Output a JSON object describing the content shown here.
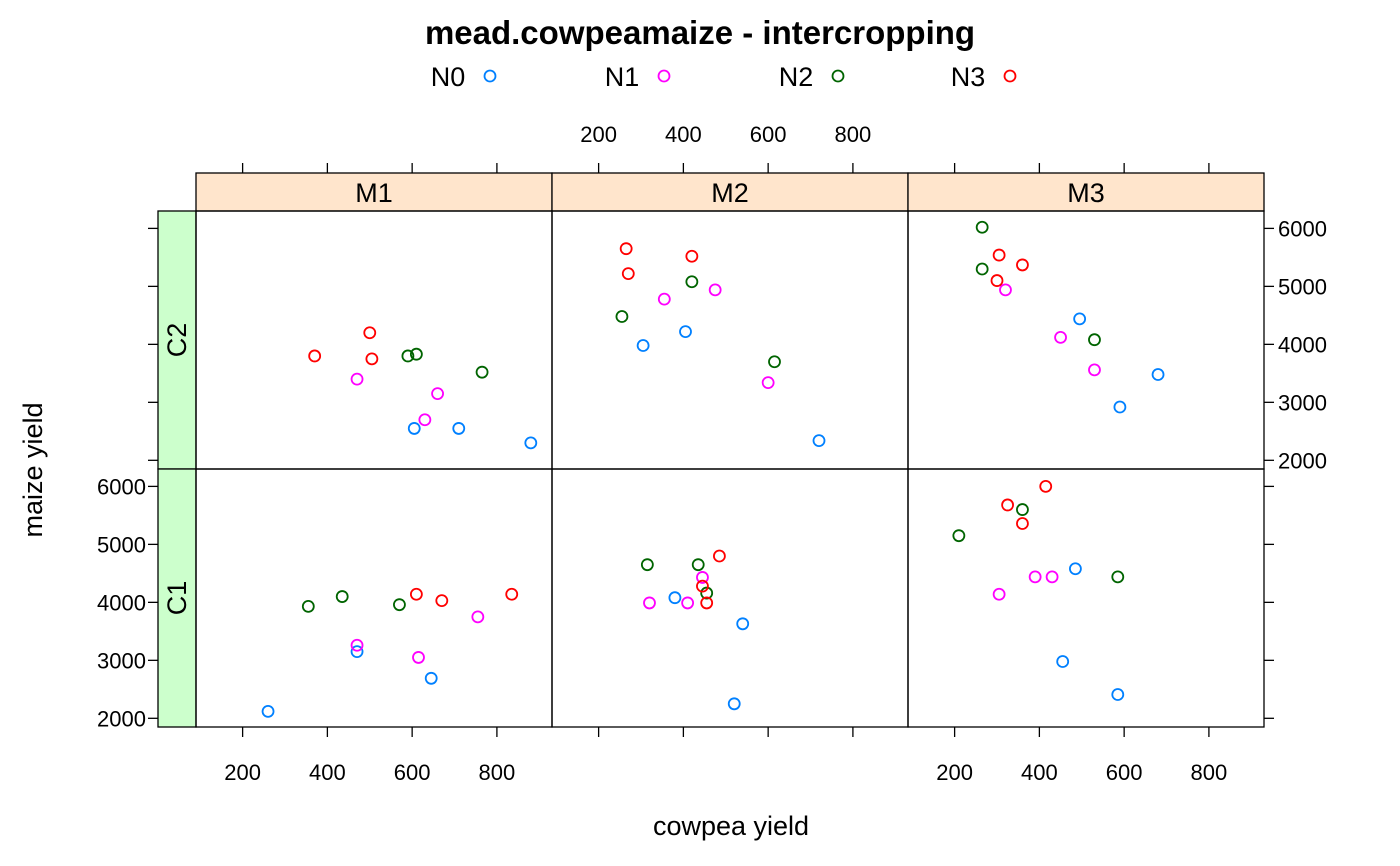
{
  "chart_data": {
    "type": "scatter",
    "title": "mead.cowpeamaize - intercropping",
    "xlabel": "cowpea yield",
    "ylabel": "maize yield",
    "xlim": [
      90,
      930
    ],
    "ylim": [
      1850,
      6300
    ],
    "x_ticks": [
      200,
      400,
      600,
      800
    ],
    "y_ticks": [
      2000,
      3000,
      4000,
      5000,
      6000
    ],
    "column_strips": [
      "M1",
      "M2",
      "M3"
    ],
    "row_strips": [
      "C1",
      "C2"
    ],
    "legend": {
      "placement": "top",
      "entries": [
        {
          "name": "N0",
          "color": "#0080ff"
        },
        {
          "name": "N1",
          "color": "#ff00ff"
        },
        {
          "name": "N2",
          "color": "#006400"
        },
        {
          "name": "N3",
          "color": "#ff0000"
        }
      ]
    },
    "strip_colors": {
      "column": "#ffe5cc",
      "row": "#ccffcc"
    },
    "panels": [
      {
        "column": "M1",
        "row": "C2",
        "points": [
          {
            "group": "N0",
            "x": 605,
            "y": 2550
          },
          {
            "group": "N0",
            "x": 710,
            "y": 2550
          },
          {
            "group": "N0",
            "x": 880,
            "y": 2300
          },
          {
            "group": "N1",
            "x": 470,
            "y": 3400
          },
          {
            "group": "N1",
            "x": 630,
            "y": 2700
          },
          {
            "group": "N1",
            "x": 660,
            "y": 3150
          },
          {
            "group": "N2",
            "x": 590,
            "y": 3800
          },
          {
            "group": "N2",
            "x": 610,
            "y": 3830
          },
          {
            "group": "N2",
            "x": 765,
            "y": 3520
          },
          {
            "group": "N3",
            "x": 370,
            "y": 3800
          },
          {
            "group": "N3",
            "x": 500,
            "y": 4200
          },
          {
            "group": "N3",
            "x": 505,
            "y": 3750
          }
        ]
      },
      {
        "column": "M2",
        "row": "C2",
        "points": [
          {
            "group": "N0",
            "x": 305,
            "y": 3980
          },
          {
            "group": "N0",
            "x": 405,
            "y": 4220
          },
          {
            "group": "N0",
            "x": 720,
            "y": 2340
          },
          {
            "group": "N1",
            "x": 355,
            "y": 4780
          },
          {
            "group": "N1",
            "x": 475,
            "y": 4940
          },
          {
            "group": "N1",
            "x": 600,
            "y": 3340
          },
          {
            "group": "N2",
            "x": 255,
            "y": 4480
          },
          {
            "group": "N2",
            "x": 420,
            "y": 5080
          },
          {
            "group": "N2",
            "x": 615,
            "y": 3700
          },
          {
            "group": "N3",
            "x": 265,
            "y": 5650
          },
          {
            "group": "N3",
            "x": 270,
            "y": 5220
          },
          {
            "group": "N3",
            "x": 420,
            "y": 5520
          }
        ]
      },
      {
        "column": "M3",
        "row": "C2",
        "points": [
          {
            "group": "N0",
            "x": 495,
            "y": 4440
          },
          {
            "group": "N0",
            "x": 590,
            "y": 2920
          },
          {
            "group": "N0",
            "x": 680,
            "y": 3480
          },
          {
            "group": "N1",
            "x": 320,
            "y": 4940
          },
          {
            "group": "N1",
            "x": 450,
            "y": 4120
          },
          {
            "group": "N1",
            "x": 530,
            "y": 3560
          },
          {
            "group": "N2",
            "x": 265,
            "y": 6020
          },
          {
            "group": "N2",
            "x": 265,
            "y": 5300
          },
          {
            "group": "N2",
            "x": 530,
            "y": 4080
          },
          {
            "group": "N3",
            "x": 300,
            "y": 5100
          },
          {
            "group": "N3",
            "x": 305,
            "y": 5540
          },
          {
            "group": "N3",
            "x": 360,
            "y": 5370
          }
        ]
      },
      {
        "column": "M1",
        "row": "C1",
        "points": [
          {
            "group": "N0",
            "x": 260,
            "y": 2120
          },
          {
            "group": "N0",
            "x": 470,
            "y": 3150
          },
          {
            "group": "N0",
            "x": 645,
            "y": 2690
          },
          {
            "group": "N1",
            "x": 470,
            "y": 3260
          },
          {
            "group": "N1",
            "x": 615,
            "y": 3050
          },
          {
            "group": "N1",
            "x": 755,
            "y": 3750
          },
          {
            "group": "N2",
            "x": 355,
            "y": 3930
          },
          {
            "group": "N2",
            "x": 435,
            "y": 4100
          },
          {
            "group": "N2",
            "x": 570,
            "y": 3960
          },
          {
            "group": "N3",
            "x": 610,
            "y": 4140
          },
          {
            "group": "N3",
            "x": 670,
            "y": 4030
          },
          {
            "group": "N3",
            "x": 835,
            "y": 4140
          }
        ]
      },
      {
        "column": "M2",
        "row": "C1",
        "points": [
          {
            "group": "N0",
            "x": 380,
            "y": 4080
          },
          {
            "group": "N0",
            "x": 520,
            "y": 2250
          },
          {
            "group": "N0",
            "x": 540,
            "y": 3630
          },
          {
            "group": "N1",
            "x": 320,
            "y": 3990
          },
          {
            "group": "N1",
            "x": 410,
            "y": 3990
          },
          {
            "group": "N1",
            "x": 445,
            "y": 4430
          },
          {
            "group": "N2",
            "x": 315,
            "y": 4650
          },
          {
            "group": "N2",
            "x": 435,
            "y": 4650
          },
          {
            "group": "N2",
            "x": 455,
            "y": 4160
          },
          {
            "group": "N3",
            "x": 445,
            "y": 4280
          },
          {
            "group": "N3",
            "x": 455,
            "y": 3990
          },
          {
            "group": "N3",
            "x": 485,
            "y": 4800
          }
        ]
      },
      {
        "column": "M3",
        "row": "C1",
        "points": [
          {
            "group": "N0",
            "x": 455,
            "y": 2980
          },
          {
            "group": "N0",
            "x": 485,
            "y": 4580
          },
          {
            "group": "N0",
            "x": 585,
            "y": 2410
          },
          {
            "group": "N1",
            "x": 305,
            "y": 4140
          },
          {
            "group": "N1",
            "x": 390,
            "y": 4440
          },
          {
            "group": "N1",
            "x": 430,
            "y": 4440
          },
          {
            "group": "N2",
            "x": 210,
            "y": 5150
          },
          {
            "group": "N2",
            "x": 360,
            "y": 5600
          },
          {
            "group": "N2",
            "x": 585,
            "y": 4440
          },
          {
            "group": "N3",
            "x": 325,
            "y": 5680
          },
          {
            "group": "N3",
            "x": 360,
            "y": 5360
          },
          {
            "group": "N3",
            "x": 415,
            "y": 6000
          }
        ]
      }
    ]
  }
}
